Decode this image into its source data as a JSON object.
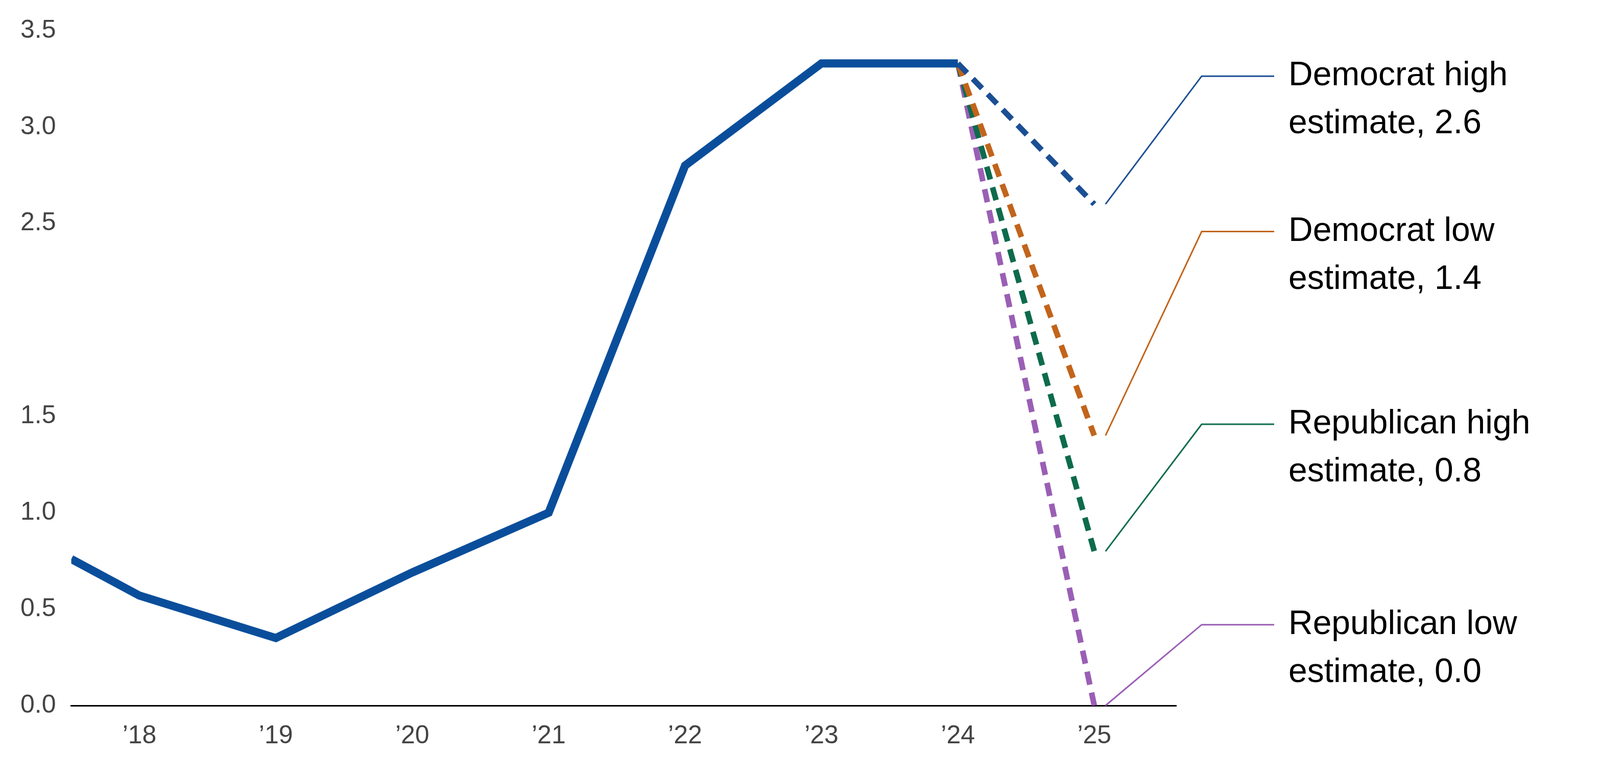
{
  "chart_data": {
    "type": "line",
    "x": [
      2017.5,
      2018,
      2019,
      2020,
      2021,
      2022,
      2023,
      2024,
      2025
    ],
    "xlim": [
      2017.5,
      2025.6
    ],
    "xticks": [
      {
        "value": 2018,
        "label": "’18"
      },
      {
        "value": 2019,
        "label": "’19"
      },
      {
        "value": 2020,
        "label": "’20"
      },
      {
        "value": 2021,
        "label": "’21"
      },
      {
        "value": 2022,
        "label": "’22"
      },
      {
        "value": 2023,
        "label": "’23"
      },
      {
        "value": 2024,
        "label": "’24"
      },
      {
        "value": 2025,
        "label": "’25"
      }
    ],
    "ylim": [
      0,
      3.5
    ],
    "yticks": [
      {
        "value": 0,
        "label": "0.0"
      },
      0.5,
      {
        "value": 1,
        "label": "1.0"
      },
      1.5,
      2.5,
      {
        "value": 3,
        "label": "3.0"
      },
      3.5
    ],
    "grid": false,
    "legend": "none",
    "series": [
      {
        "color": "#0a4e9b",
        "line_style": "solid",
        "values": [
          0.76,
          0.57,
          0.35,
          0.69,
          1.0,
          2.8,
          3.33,
          3.33,
          null
        ]
      },
      {
        "name": "Democrat high estimate, 2.6",
        "color": "#1b4f94",
        "line_style": "dashed",
        "values": [
          null,
          null,
          null,
          null,
          null,
          null,
          null,
          3.33,
          2.6
        ]
      },
      {
        "name": "Democrat low estimate, 1.4",
        "color": "#c2641b",
        "line_style": "dashed",
        "values": [
          null,
          null,
          null,
          null,
          null,
          null,
          null,
          3.33,
          1.4
        ]
      },
      {
        "name": "Republican high estimate, 0.8",
        "color": "#0d6b4c",
        "line_style": "dashed",
        "values": [
          null,
          null,
          null,
          null,
          null,
          null,
          null,
          3.33,
          0.8
        ]
      },
      {
        "name": "Republican low estimate, 0.0",
        "color": "#9a5fb5",
        "line_style": "dashed",
        "values": [
          null,
          null,
          null,
          null,
          null,
          null,
          null,
          3.33,
          0.0
        ]
      }
    ]
  }
}
